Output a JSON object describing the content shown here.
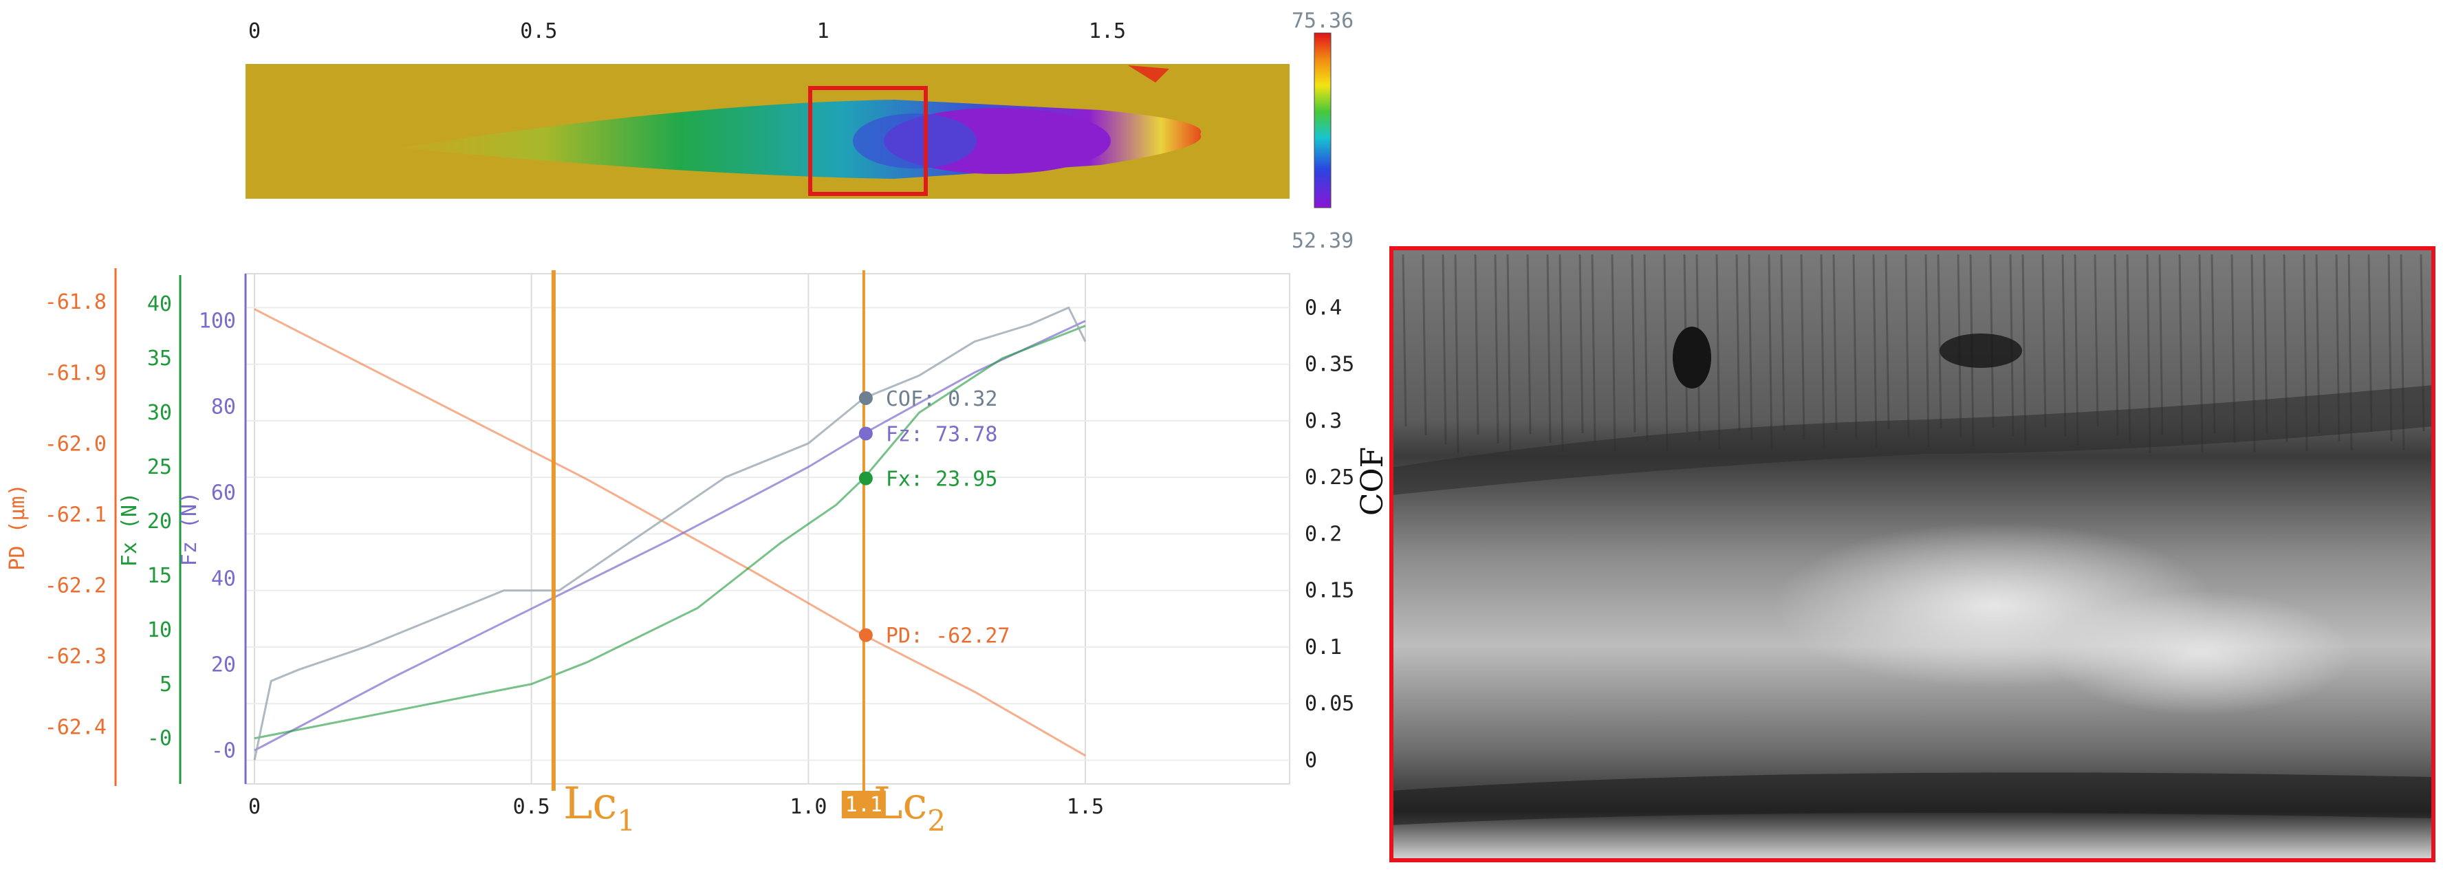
{
  "colorbar": {
    "max": "75.36",
    "min": "52.39"
  },
  "top_axis": {
    "ticks": [
      "0",
      "0.5",
      "1",
      "1.5"
    ]
  },
  "chart_data": {
    "type": "line",
    "x_range": [
      0,
      1.85
    ],
    "x_ticks": [
      0,
      0.5,
      1.0,
      1.5
    ],
    "x_tick_labels": [
      "0",
      "0.5",
      "1.0",
      "1.5"
    ],
    "axes": {
      "pd": {
        "label": "PD (μm)",
        "range": [
          -62.48,
          -61.76
        ],
        "ticks": [
          "-61.8",
          "-61.9",
          "-62.0",
          "-62.1",
          "-62.2",
          "-62.3",
          "-62.4"
        ],
        "tick_values": [
          -61.8,
          -61.9,
          -62.0,
          -62.1,
          -62.2,
          -62.3,
          -62.4
        ]
      },
      "fx": {
        "label": "Fx (N)",
        "range": [
          -4.2,
          42.8
        ],
        "ticks": [
          "40",
          "35",
          "30",
          "25",
          "20",
          "15",
          "10",
          "5",
          "0"
        ],
        "tick_values": [
          40,
          35,
          30,
          25,
          20,
          15,
          10,
          5,
          0
        ],
        "tick_labels_print": [
          "40",
          "35",
          "30",
          "25",
          "20",
          "15",
          "10",
          "5",
          "-0"
        ]
      },
      "fz": {
        "label": "Fz (N)",
        "range": [
          -7.8,
          111
        ],
        "ticks": [
          "100",
          "80",
          "60",
          "40",
          "20",
          "0"
        ],
        "tick_values": [
          100,
          80,
          60,
          40,
          20,
          0
        ],
        "tick_labels_print": [
          "100",
          "80",
          "60",
          "40",
          "20",
          "-0"
        ]
      },
      "cof": {
        "label": "COF",
        "range": [
          -0.021,
          0.43
        ],
        "ticks": [
          "0.4",
          "0.35",
          "0.3",
          "0.25",
          "0.2",
          "0.15",
          "0.1",
          "0.05",
          "0"
        ],
        "tick_values": [
          0.4,
          0.35,
          0.3,
          0.25,
          0.2,
          0.15,
          0.1,
          0.05,
          0
        ]
      }
    },
    "series": [
      {
        "name": "PD",
        "axis": "pd",
        "x": [
          0,
          0.3,
          0.6,
          0.9,
          1.1,
          1.3,
          1.5
        ],
        "y": [
          -61.81,
          -61.93,
          -62.05,
          -62.18,
          -62.27,
          -62.35,
          -62.44
        ]
      },
      {
        "name": "Fz",
        "axis": "fz",
        "x": [
          0,
          0.25,
          0.5,
          0.75,
          1.0,
          1.1,
          1.3,
          1.5
        ],
        "y": [
          0,
          17,
          33,
          49,
          66,
          73.78,
          88,
          100
        ]
      },
      {
        "name": "Fx",
        "axis": "fx",
        "x": [
          0,
          0.2,
          0.4,
          0.5,
          0.6,
          0.8,
          0.95,
          1.05,
          1.1,
          1.2,
          1.35,
          1.5
        ],
        "y": [
          0,
          2,
          4,
          5,
          7,
          12,
          18,
          21.5,
          23.95,
          30,
          35,
          38
        ]
      },
      {
        "name": "COF",
        "axis": "cof",
        "x": [
          0,
          0.03,
          0.08,
          0.2,
          0.35,
          0.45,
          0.55,
          0.7,
          0.85,
          1.0,
          1.1,
          1.2,
          1.3,
          1.4,
          1.47,
          1.5
        ],
        "y": [
          0,
          0.07,
          0.08,
          0.1,
          0.13,
          0.15,
          0.15,
          0.2,
          0.25,
          0.28,
          0.32,
          0.34,
          0.37,
          0.385,
          0.4,
          0.37
        ]
      }
    ],
    "markers": [
      {
        "label": "Lc",
        "sub": "1",
        "x": 0.54
      },
      {
        "label": "Lc",
        "sub": "2",
        "x": 1.1
      }
    ],
    "cursor": {
      "x": 1.1,
      "x_label": "1.1"
    },
    "readouts": [
      {
        "series": "COF",
        "text": "COF: 0.32",
        "axis": "cof",
        "y": 0.32
      },
      {
        "series": "Fz",
        "text": "Fz: 73.78",
        "axis": "fz",
        "y": 73.78
      },
      {
        "series": "Fx",
        "text": "Fx: 23.95",
        "axis": "fx",
        "y": 23.95
      },
      {
        "series": "PD",
        "text": "PD: -62.27",
        "axis": "pd",
        "y": -62.27
      }
    ],
    "colors": {
      "pd": "#ec6e2f",
      "fx": "#1e9a3a",
      "fz": "#7a6ccc",
      "cof": "#9aa7b3",
      "marker": "#e8982e"
    }
  }
}
